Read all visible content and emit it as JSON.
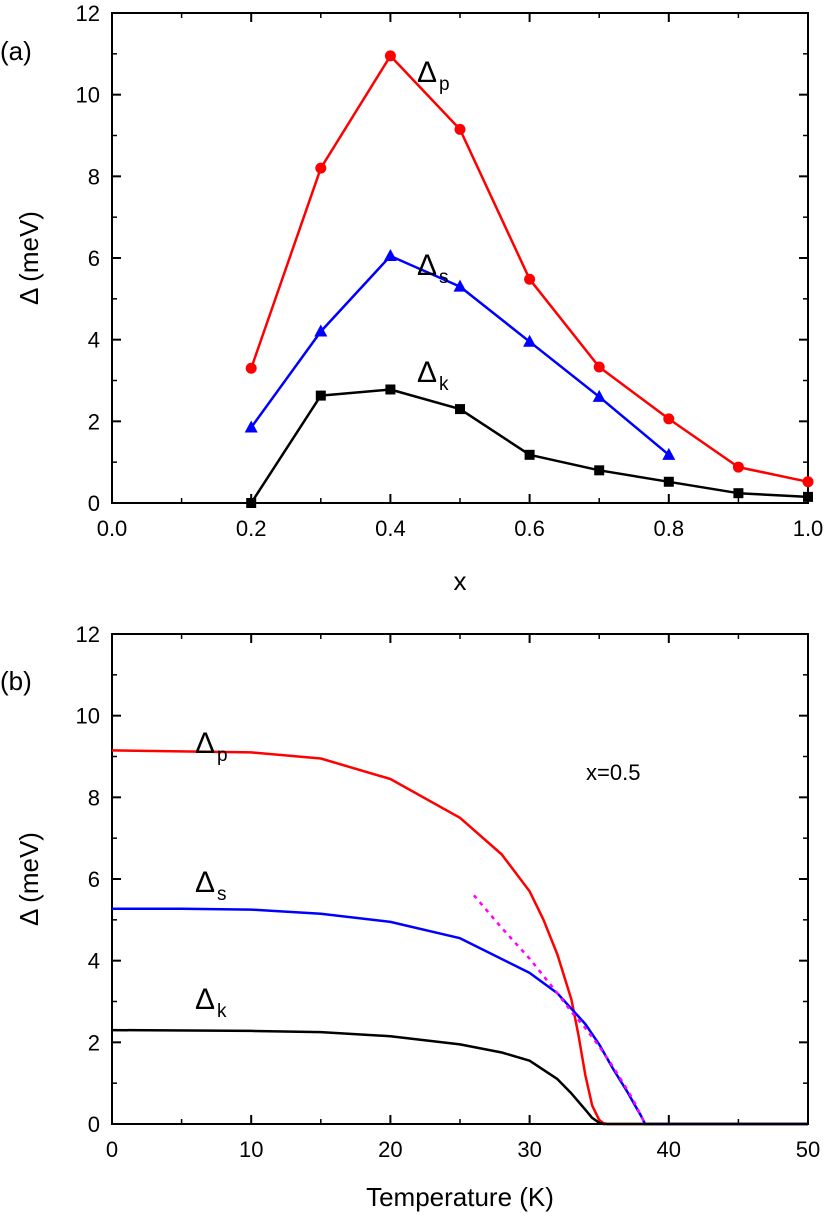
{
  "chart_data": [
    {
      "type": "line",
      "panel_label": "(a)",
      "xlabel": "x",
      "ylabel": "Δ (meV)",
      "xlim": [
        0.0,
        1.0
      ],
      "ylim": [
        0,
        12
      ],
      "xticks": [
        "0.0",
        "0.2",
        "0.4",
        "0.6",
        "0.8",
        "1.0"
      ],
      "yticks": [
        "0",
        "2",
        "4",
        "6",
        "8",
        "10",
        "12"
      ],
      "grid": false,
      "series": [
        {
          "name": "Δp",
          "label_main": "Δ",
          "label_sub": "p",
          "color": "#ff0000",
          "marker": "circle",
          "x": [
            0.2,
            0.3,
            0.4,
            0.5,
            0.6,
            0.7,
            0.8,
            0.9,
            1.0
          ],
          "y": [
            3.3,
            8.2,
            10.95,
            9.15,
            5.48,
            3.33,
            2.06,
            0.88,
            0.52
          ]
        },
        {
          "name": "Δs",
          "label_main": "Δ",
          "label_sub": "s",
          "color": "#0000ff",
          "marker": "triangle",
          "x": [
            0.2,
            0.3,
            0.4,
            0.5,
            0.6,
            0.7,
            0.8
          ],
          "y": [
            1.85,
            4.2,
            6.05,
            5.3,
            3.95,
            2.6,
            1.18
          ]
        },
        {
          "name": "Δk",
          "label_main": "Δ",
          "label_sub": "k",
          "color": "#000000",
          "marker": "square",
          "x": [
            0.2,
            0.3,
            0.4,
            0.5,
            0.6,
            0.7,
            0.8,
            0.9,
            1.0
          ],
          "y": [
            0.0,
            2.63,
            2.78,
            2.3,
            1.18,
            0.8,
            0.52,
            0.24,
            0.15
          ]
        }
      ]
    },
    {
      "type": "line",
      "panel_label": "(b)",
      "xlabel": "Temperature (K)",
      "ylabel": "Δ (meV)",
      "xlim": [
        0,
        50
      ],
      "ylim": [
        0,
        12
      ],
      "xticks": [
        "0",
        "10",
        "20",
        "30",
        "40",
        "50"
      ],
      "yticks": [
        "0",
        "2",
        "4",
        "6",
        "8",
        "10",
        "12"
      ],
      "grid": false,
      "annotation": "x=0.5",
      "series": [
        {
          "name": "Δp",
          "label_main": "Δ",
          "label_sub": "p",
          "color": "#ff0000",
          "style": "solid",
          "x": [
            0,
            10,
            15,
            20,
            25,
            28,
            30,
            31,
            32,
            33,
            33.5,
            34,
            34.5,
            35,
            35.3,
            35.6,
            50
          ],
          "y": [
            9.15,
            9.1,
            8.95,
            8.45,
            7.5,
            6.6,
            5.7,
            5.0,
            4.15,
            3.05,
            2.2,
            1.2,
            0.45,
            0.1,
            0.02,
            0,
            0
          ]
        },
        {
          "name": "Δs",
          "label_main": "Δ",
          "label_sub": "s",
          "color": "#0000ff",
          "style": "solid",
          "x": [
            0,
            5,
            10,
            15,
            20,
            25,
            30,
            32,
            34,
            35,
            36,
            37,
            37.5,
            38,
            38.3,
            50
          ],
          "y": [
            5.27,
            5.27,
            5.25,
            5.15,
            4.95,
            4.55,
            3.7,
            3.2,
            2.45,
            1.95,
            1.35,
            0.8,
            0.5,
            0.2,
            0,
            0
          ]
        },
        {
          "name": "Δk",
          "label_main": "Δ",
          "label_sub": "k",
          "color": "#000000",
          "style": "solid",
          "x": [
            0,
            10,
            15,
            20,
            25,
            28,
            30,
            32,
            33,
            34,
            34.5,
            35,
            35.3,
            50
          ],
          "y": [
            2.3,
            2.28,
            2.25,
            2.15,
            1.95,
            1.75,
            1.55,
            1.1,
            0.75,
            0.35,
            0.15,
            0.03,
            0,
            0
          ]
        },
        {
          "name": "",
          "color": "#ff00ff",
          "style": "dotted",
          "x": [
            26,
            28,
            30,
            32,
            33,
            34,
            35,
            36,
            37,
            37.5,
            38,
            38.3
          ],
          "y": [
            5.6,
            4.8,
            4.05,
            3.2,
            2.75,
            2.35,
            1.9,
            1.4,
            0.85,
            0.55,
            0.2,
            0
          ]
        }
      ]
    }
  ]
}
